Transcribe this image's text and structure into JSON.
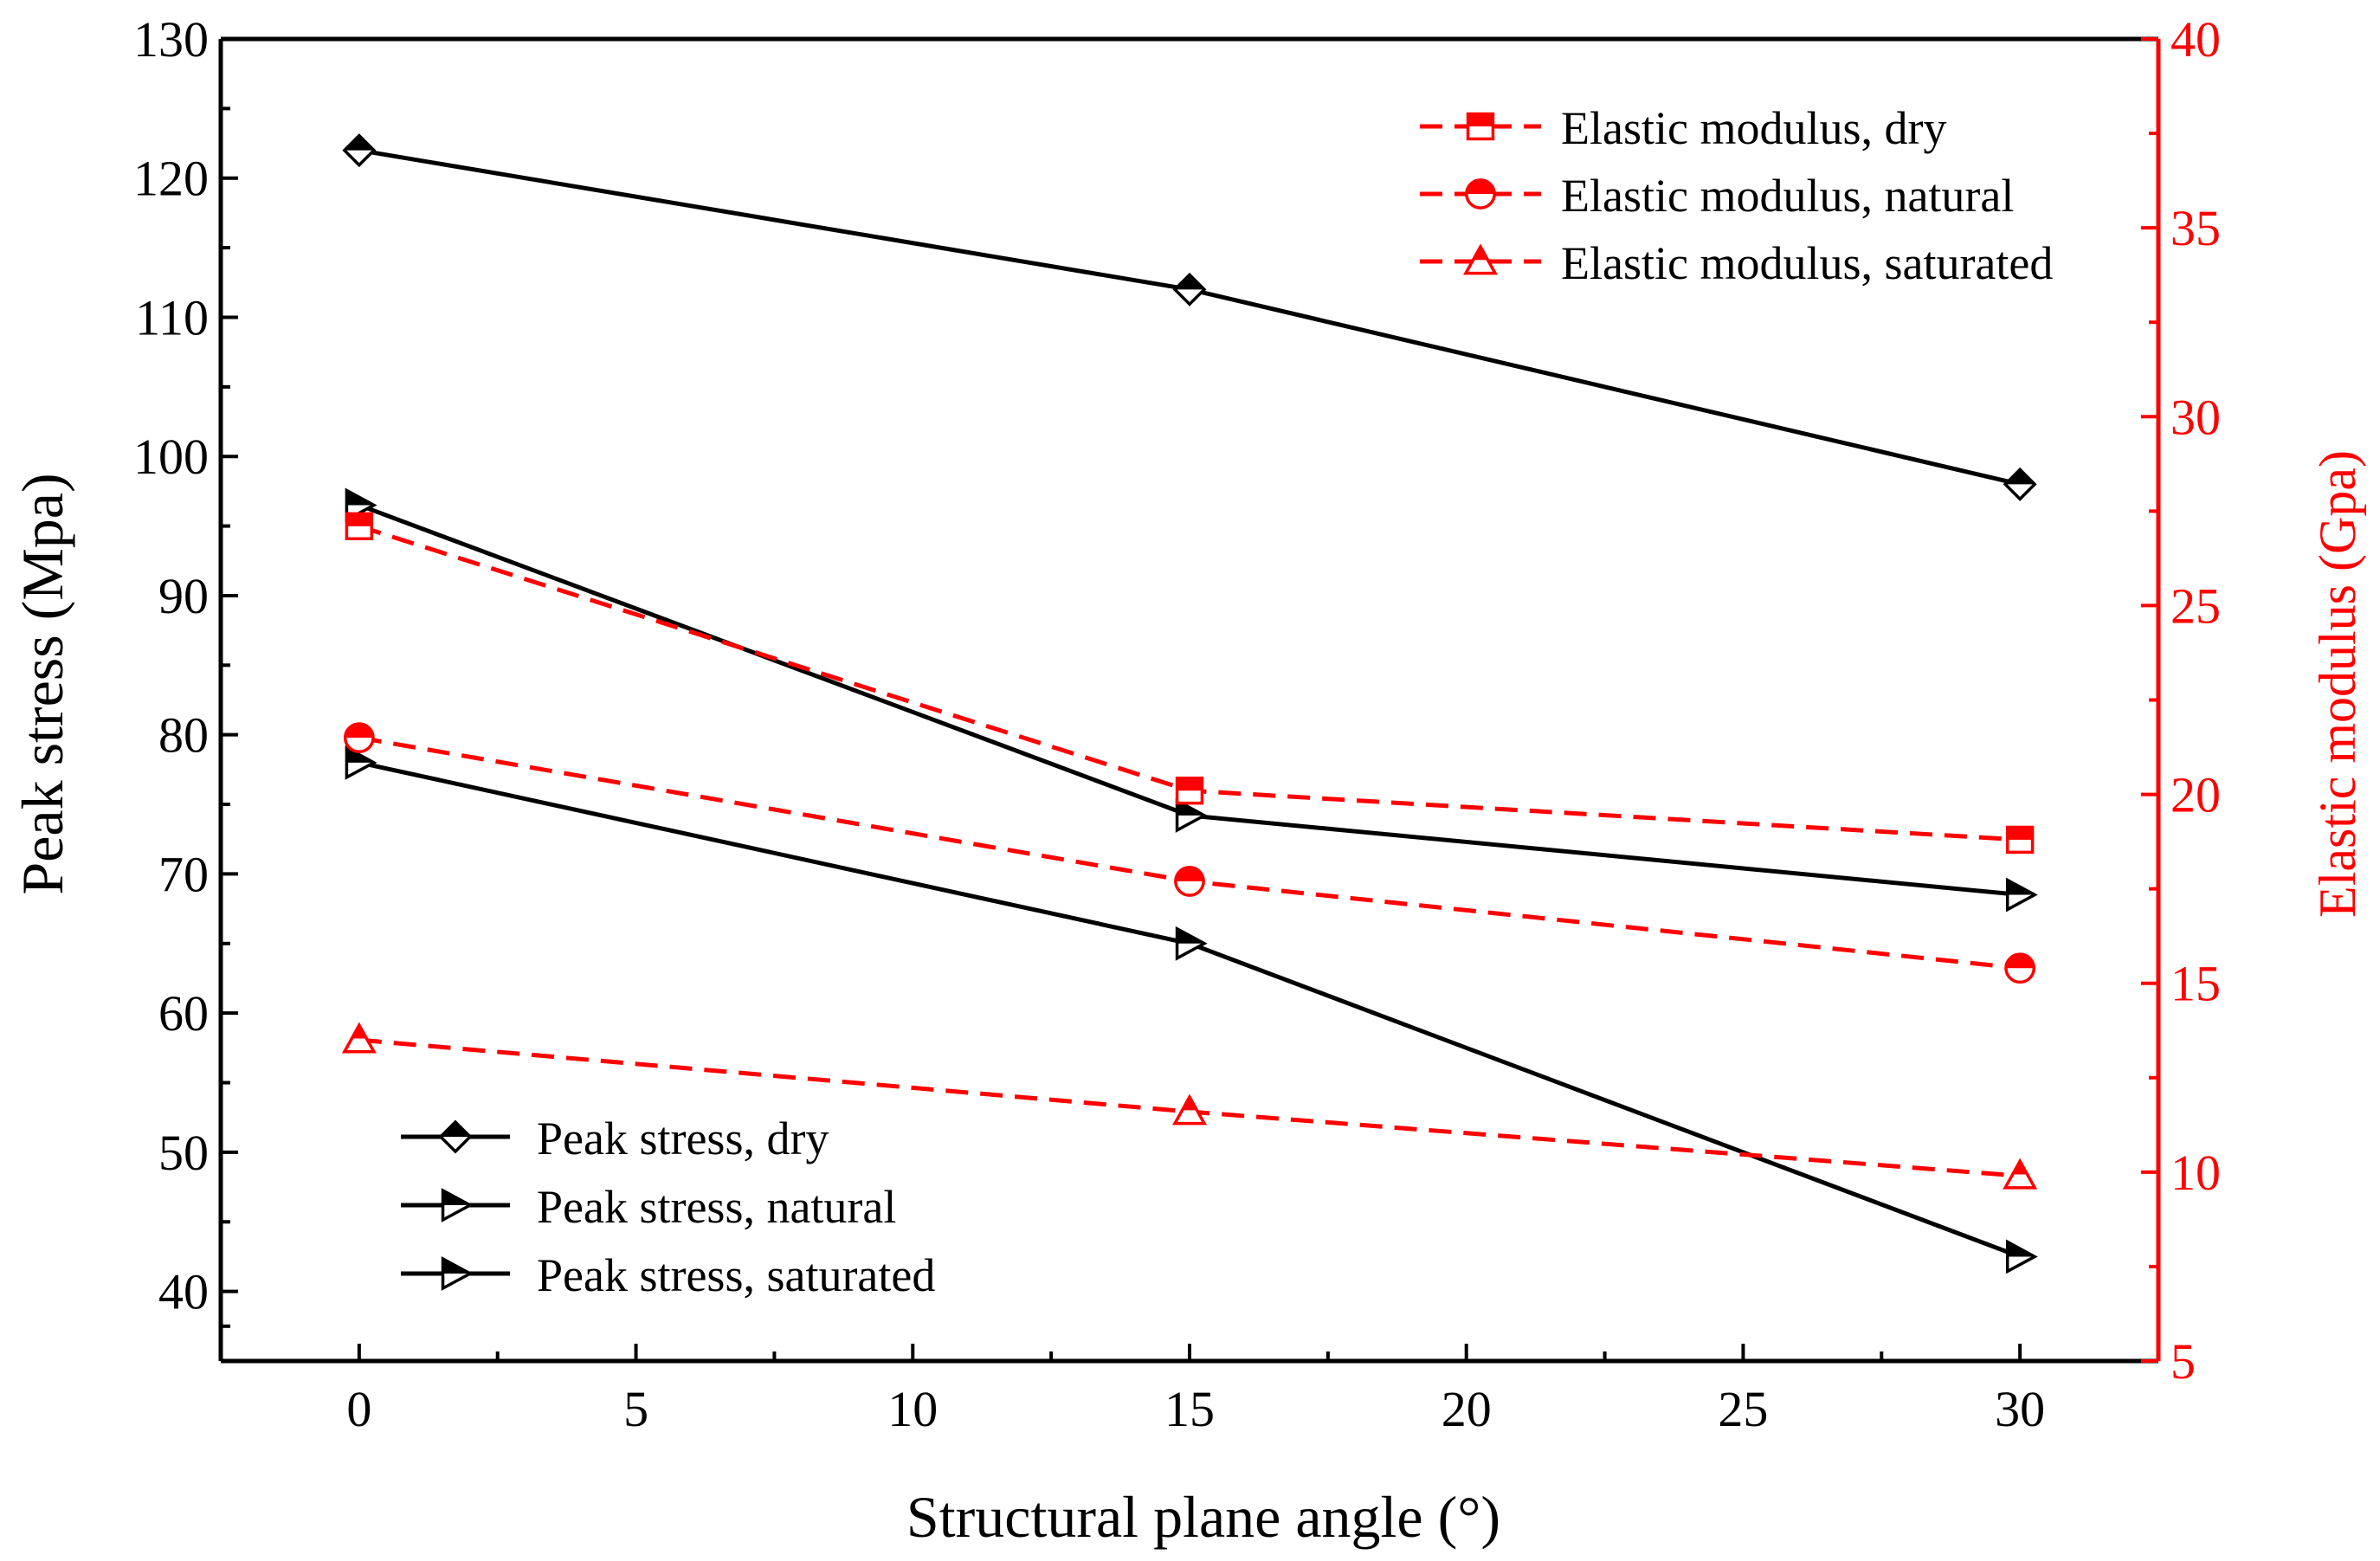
{
  "chart_data": {
    "type": "line",
    "xlabel": "Structural plane angle (°)",
    "ylabel_left": "Peak stress (Mpa)",
    "ylabel_right": "Elastic modulus (Gpa)",
    "xlim": [
      -2.5,
      32.5
    ],
    "ylim_left": [
      35,
      130
    ],
    "ylim_right": [
      5,
      40
    ],
    "x_ticks": [
      0,
      5,
      10,
      15,
      20,
      25,
      30
    ],
    "y_left_ticks": [
      40,
      50,
      60,
      70,
      80,
      90,
      100,
      110,
      120,
      130
    ],
    "y_right_ticks": [
      5,
      10,
      15,
      20,
      25,
      30,
      35,
      40
    ],
    "x": [
      0,
      15,
      30
    ],
    "series": [
      {
        "name": "Peak stress, dry",
        "axis": "left",
        "color": "#000000",
        "marker": "diamond",
        "dash": false,
        "values": [
          122,
          112,
          98
        ]
      },
      {
        "name": "Peak stress, natural",
        "axis": "left",
        "color": "#000000",
        "marker": "tri-right",
        "dash": false,
        "values": [
          96.5,
          74.2,
          68.5
        ]
      },
      {
        "name": "Peak stress, saturated",
        "axis": "left",
        "color": "#000000",
        "marker": "tri-right",
        "dash": false,
        "values": [
          78,
          65,
          42.5
        ]
      },
      {
        "name": "Elastic modulus, dry",
        "axis": "right",
        "color": "#ff0000",
        "marker": "square",
        "dash": true,
        "values": [
          27.1,
          20.1,
          18.8
        ]
      },
      {
        "name": "Elastic modulus, natural",
        "axis": "right",
        "color": "#ff0000",
        "marker": "circle",
        "dash": true,
        "values": [
          21.5,
          17.7,
          15.4
        ]
      },
      {
        "name": "Elastic modulus, saturated",
        "axis": "right",
        "color": "#ff0000",
        "marker": "triangle",
        "dash": true,
        "values": [
          13.5,
          11.6,
          9.9
        ]
      }
    ],
    "legends": {
      "left_bottom": [
        "Peak stress, dry",
        "Peak stress, natural",
        "Peak stress, saturated"
      ],
      "right_top": [
        "Elastic modulus, dry",
        "Elastic modulus, natural",
        "Elastic modulus, saturated"
      ]
    },
    "colors": {
      "left_axis": "#000000",
      "right_axis": "#ff0000"
    }
  }
}
